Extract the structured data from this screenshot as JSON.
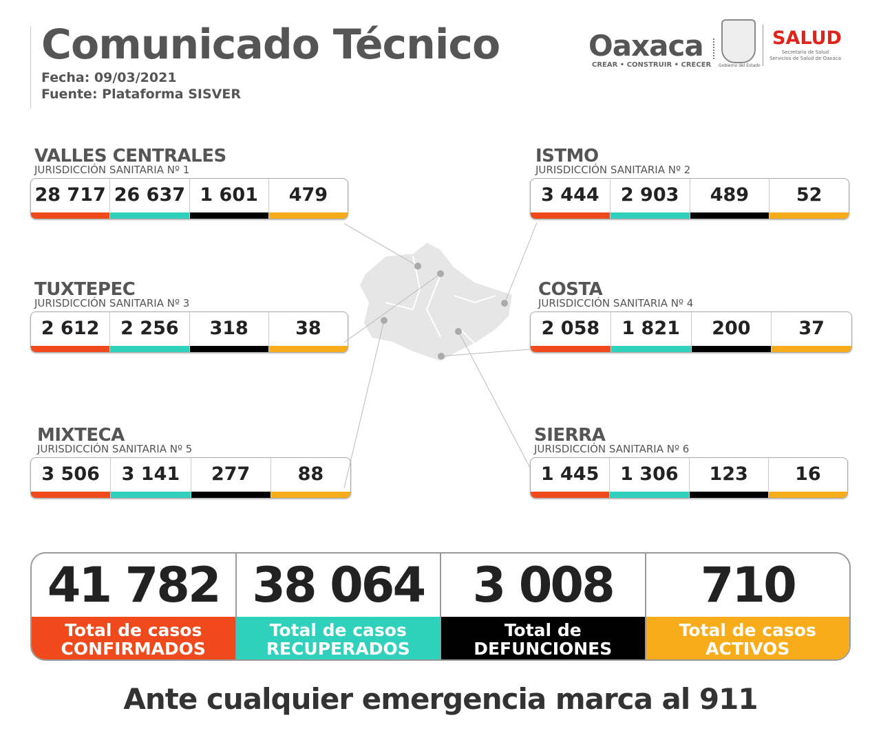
{
  "header": {
    "title": "Comunicado Técnico",
    "date": "Fecha: 09/03/2021",
    "source": "Fuente: Plataforma SISVER"
  },
  "logos": {
    "oaxaca": "Oaxaca",
    "oaxaca_tagline": "CREAR • CONSTRUIR • CRECER",
    "gobierno": "Gobierno del Estado",
    "salud": "SALUD",
    "salud_sub1": "Secretaría de Salud",
    "salud_sub2": "Servicios de Salud de Oaxaca"
  },
  "colors": {
    "confirmados": "#f04a1c",
    "recuperados": "#2fd1bd",
    "defunciones": "#000000",
    "activos": "#f9ac1a"
  },
  "regions": [
    {
      "name": "VALLES CENTRALES",
      "sub": "JURISDICCIÓN SANITARIA Nº 1",
      "values": [
        "28 717",
        "26 637",
        "1 601",
        "479"
      ]
    },
    {
      "name": "ISTMO",
      "sub": "JURISDICCIÓN SANITARIA Nº 2",
      "values": [
        "3 444",
        "2 903",
        "489",
        "52"
      ]
    },
    {
      "name": "TUXTEPEC",
      "sub": "JURISDICCIÓN SANITARIA Nº 3",
      "values": [
        "2 612",
        "2 256",
        "318",
        "38"
      ]
    },
    {
      "name": "COSTA",
      "sub": "JURISDICCIÓN SANITARIA Nº 4",
      "values": [
        "2 058",
        "1 821",
        "200",
        "37"
      ]
    },
    {
      "name": "MIXTECA",
      "sub": "JURISDICCIÓN SANITARIA Nº 5",
      "values": [
        "3 506",
        "3 141",
        "277",
        "88"
      ]
    },
    {
      "name": "SIERRA",
      "sub": "JURISDICCIÓN SANITARIA Nº 6",
      "values": [
        "1 445",
        "1 306",
        "123",
        "16"
      ]
    }
  ],
  "totals": [
    {
      "value": "41 782",
      "label1": "Total de casos",
      "label2": "CONFIRMADOS"
    },
    {
      "value": "38 064",
      "label1": "Total de casos",
      "label2": "RECUPERADOS"
    },
    {
      "value": "3 008",
      "label1": "Total de",
      "label2": "DEFUNCIONES"
    },
    {
      "value": "710",
      "label1": "Total de casos",
      "label2": "ACTIVOS"
    }
  ],
  "footer": "Ante cualquier emergencia marca al 911"
}
